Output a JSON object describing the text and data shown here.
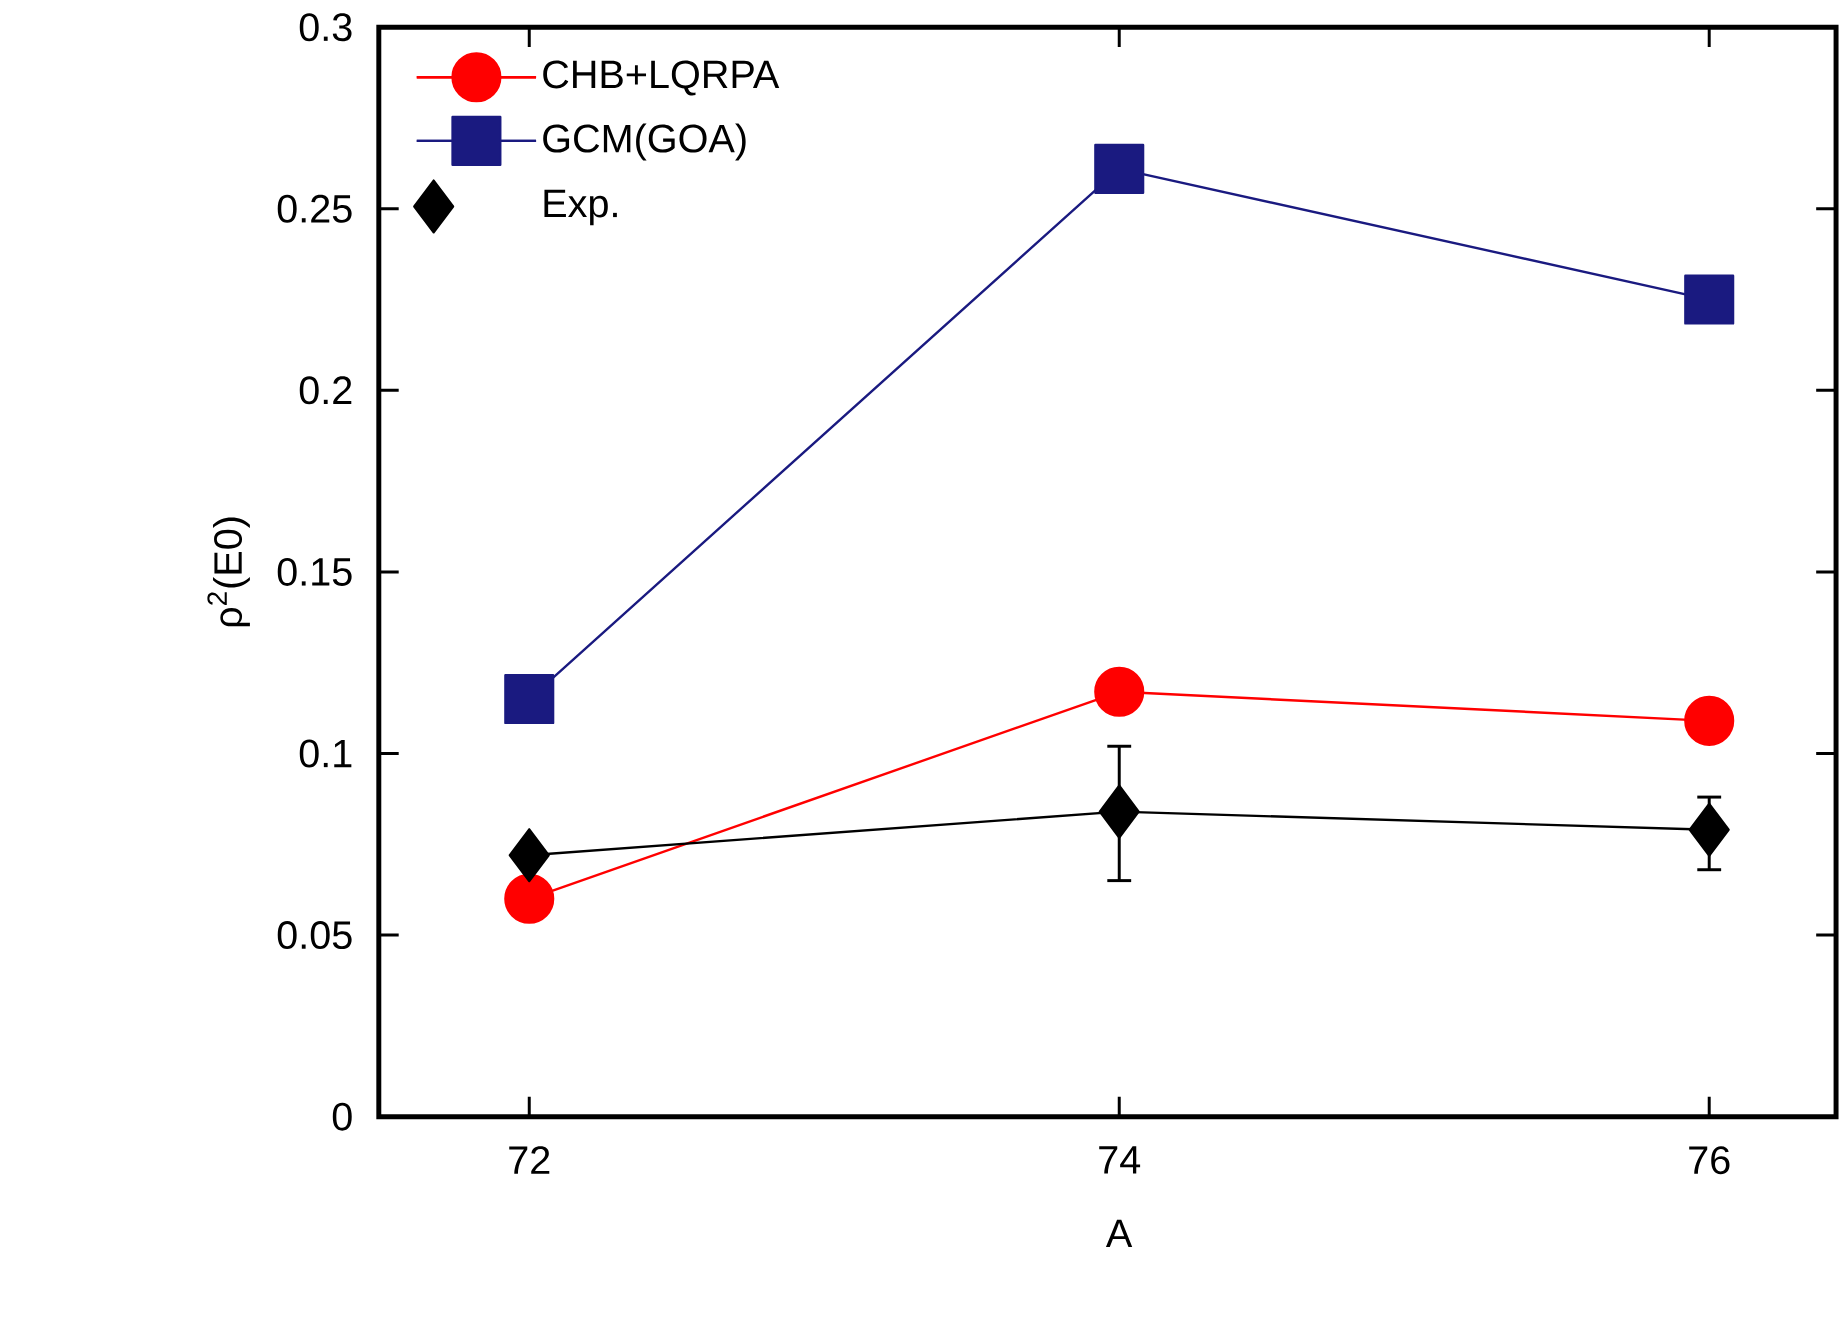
{
  "chart_data": {
    "type": "line",
    "xlabel": "A",
    "ylabel": "ρ$^{2}$(E0)",
    "x": [
      72,
      74,
      76
    ],
    "series": [
      {
        "name": "CHB+LQRPA",
        "color": "#ff0000",
        "marker": "circle",
        "values": [
          0.06,
          0.117,
          0.109
        ]
      },
      {
        "name": "GCM(GOA)",
        "color": "#1a1a80",
        "marker": "square",
        "values": [
          0.115,
          0.261,
          0.225
        ]
      },
      {
        "name": "Exp.",
        "color": "#000000",
        "marker": "diamond",
        "values": [
          0.072,
          0.084,
          0.079
        ],
        "errors": [
          null,
          [
            0.065,
            0.102
          ],
          [
            0.068,
            0.088
          ]
        ]
      }
    ],
    "xlim": [
      71.49,
      76.43
    ],
    "ylim": [
      0,
      0.3
    ],
    "xticks": [
      72,
      74,
      76
    ],
    "yticks": [
      0,
      0.05,
      0.1,
      0.15,
      0.2,
      0.25,
      0.3
    ],
    "grid": false,
    "legend": "top left"
  }
}
